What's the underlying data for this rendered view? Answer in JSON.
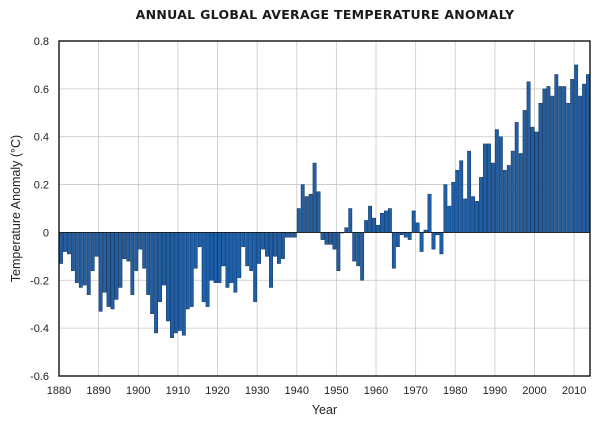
{
  "chart_data": {
    "type": "bar",
    "title": "ANNUAL GLOBAL AVERAGE TEMPERATURE ANOMALY",
    "xlabel": "Year",
    "ylabel": "Temperature Anomaly (°C)",
    "xlim": [
      1880,
      2014
    ],
    "ylim": [
      -0.6,
      0.8
    ],
    "grid": true,
    "xticks": [
      1880,
      1890,
      1900,
      1910,
      1920,
      1930,
      1940,
      1950,
      1960,
      1970,
      1980,
      1990,
      2000,
      2010
    ],
    "xtick_labels": [
      "1880",
      "1890",
      "1900",
      "1910",
      "1920",
      "1930",
      "1940",
      "1950",
      "1960",
      "1970",
      "1980",
      "1990",
      "2000",
      "2010"
    ],
    "yticks": [
      -0.6,
      -0.4,
      -0.2,
      0,
      0.2,
      0.4,
      0.6,
      0.8
    ],
    "ytick_labels": [
      "-0.6",
      "-0.4",
      "-0.2",
      "0",
      "0.2",
      "0.4",
      "0.6",
      "0.8"
    ],
    "bar_color": "#1f5fa8",
    "bar_edge_color": "#0a2a50",
    "x": [
      1880,
      1881,
      1882,
      1883,
      1884,
      1885,
      1886,
      1887,
      1888,
      1889,
      1890,
      1891,
      1892,
      1893,
      1894,
      1895,
      1896,
      1897,
      1898,
      1899,
      1900,
      1901,
      1902,
      1903,
      1904,
      1905,
      1906,
      1907,
      1908,
      1909,
      1910,
      1911,
      1912,
      1913,
      1914,
      1915,
      1916,
      1917,
      1918,
      1919,
      1920,
      1921,
      1922,
      1923,
      1924,
      1925,
      1926,
      1927,
      1928,
      1929,
      1930,
      1931,
      1932,
      1933,
      1934,
      1935,
      1936,
      1937,
      1938,
      1939,
      1940,
      1941,
      1942,
      1943,
      1944,
      1945,
      1946,
      1947,
      1948,
      1949,
      1950,
      1951,
      1952,
      1953,
      1954,
      1955,
      1956,
      1957,
      1958,
      1959,
      1960,
      1961,
      1962,
      1963,
      1964,
      1965,
      1966,
      1967,
      1968,
      1969,
      1970,
      1971,
      1972,
      1973,
      1974,
      1975,
      1976,
      1977,
      1978,
      1979,
      1980,
      1981,
      1982,
      1983,
      1984,
      1985,
      1986,
      1987,
      1988,
      1989,
      1990,
      1991,
      1992,
      1993,
      1994,
      1995,
      1996,
      1997,
      1998,
      1999,
      2000,
      2001,
      2002,
      2003,
      2004,
      2005,
      2006,
      2007,
      2008,
      2009,
      2010,
      2011,
      2012,
      2013
    ],
    "values": [
      -0.13,
      -0.08,
      -0.09,
      -0.16,
      -0.21,
      -0.23,
      -0.22,
      -0.26,
      -0.16,
      -0.1,
      -0.33,
      -0.25,
      -0.31,
      -0.32,
      -0.28,
      -0.23,
      -0.11,
      -0.12,
      -0.26,
      -0.16,
      -0.07,
      -0.15,
      -0.26,
      -0.34,
      -0.42,
      -0.29,
      -0.22,
      -0.37,
      -0.44,
      -0.42,
      -0.41,
      -0.43,
      -0.32,
      -0.31,
      -0.15,
      -0.06,
      -0.29,
      -0.31,
      -0.2,
      -0.21,
      -0.21,
      -0.14,
      -0.23,
      -0.21,
      -0.25,
      -0.19,
      -0.06,
      -0.14,
      -0.16,
      -0.29,
      -0.13,
      -0.07,
      -0.1,
      -0.23,
      -0.1,
      -0.13,
      -0.11,
      -0.02,
      -0.02,
      -0.02,
      0.1,
      0.2,
      0.15,
      0.16,
      0.29,
      0.17,
      -0.03,
      -0.05,
      -0.05,
      -0.07,
      -0.16,
      0.0,
      0.02,
      0.1,
      -0.12,
      -0.14,
      -0.2,
      0.05,
      0.11,
      0.06,
      0.03,
      0.08,
      0.09,
      0.1,
      -0.15,
      -0.06,
      -0.01,
      -0.02,
      -0.03,
      0.09,
      0.04,
      -0.08,
      0.01,
      0.16,
      -0.07,
      -0.01,
      -0.09,
      0.2,
      0.11,
      0.21,
      0.26,
      0.3,
      0.14,
      0.34,
      0.15,
      0.13,
      0.23,
      0.37,
      0.37,
      0.29,
      0.43,
      0.4,
      0.26,
      0.28,
      0.34,
      0.46,
      0.33,
      0.51,
      0.63,
      0.44,
      0.42,
      0.54,
      0.6,
      0.61,
      0.57,
      0.66,
      0.61,
      0.61,
      0.54,
      0.64,
      0.7,
      0.57,
      0.62,
      0.66
    ]
  }
}
